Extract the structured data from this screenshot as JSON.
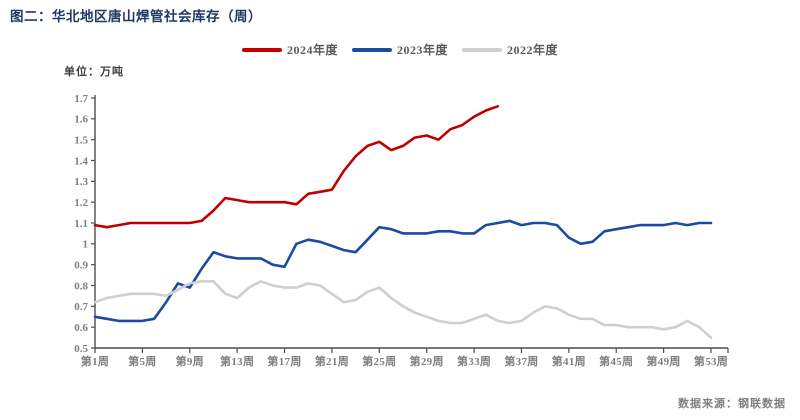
{
  "title": "图二：华北地区唐山焊管社会库存（周）",
  "unit_label": "单位：万吨",
  "source_note": "数据来源：钢联数据",
  "colors": {
    "title": "#1F3864",
    "legend_text": "#595959",
    "axis": "#4D4D4D",
    "tick_text": "#7F7F7F",
    "series_2024": "#C00000",
    "series_2023": "#1B4AA2",
    "series_2022": "#CFCFCF"
  },
  "chart_data": {
    "type": "line",
    "title": "华北地区唐山焊管社会库存（周）",
    "xlabel": "周",
    "ylabel": "万吨",
    "ylim": [
      0.5,
      1.7
    ],
    "y_tick_labels": [
      "1.7",
      "1.6",
      "1.5",
      "1.4",
      "1.3",
      "1.2",
      "1.1",
      "1",
      "0.9",
      "0.8",
      "0.7",
      "0.6",
      "0.5"
    ],
    "x_tick_weeks": [
      1,
      5,
      9,
      13,
      17,
      21,
      25,
      29,
      33,
      37,
      41,
      45,
      49,
      53
    ],
    "x_tick_labels": [
      "第1周",
      "第5周",
      "第9周",
      "第13周",
      "第17周",
      "第21周",
      "第25周",
      "第29周",
      "第33周",
      "第37周",
      "第41周",
      "第45周",
      "第49周",
      "第53周"
    ],
    "grid": false,
    "legend_position": "top",
    "series": [
      {
        "name": "2024年度",
        "color": "#C00000",
        "start_week": 1,
        "values": [
          1.09,
          1.08,
          1.09,
          1.1,
          1.1,
          1.1,
          1.1,
          1.1,
          1.1,
          1.11,
          1.16,
          1.22,
          1.21,
          1.2,
          1.2,
          1.2,
          1.2,
          1.19,
          1.24,
          1.25,
          1.26,
          1.35,
          1.42,
          1.47,
          1.49,
          1.45,
          1.47,
          1.51,
          1.52,
          1.5,
          1.55,
          1.57,
          1.61,
          1.64,
          1.66
        ]
      },
      {
        "name": "2023年度",
        "color": "#1B4AA2",
        "start_week": 1,
        "values": [
          0.65,
          0.64,
          0.63,
          0.63,
          0.63,
          0.64,
          0.72,
          0.81,
          0.79,
          0.88,
          0.96,
          0.94,
          0.93,
          0.93,
          0.93,
          0.9,
          0.89,
          1.0,
          1.02,
          1.01,
          0.99,
          0.97,
          0.96,
          1.02,
          1.08,
          1.07,
          1.05,
          1.05,
          1.05,
          1.06,
          1.06,
          1.05,
          1.05,
          1.09,
          1.1,
          1.11,
          1.09,
          1.1,
          1.1,
          1.09,
          1.03,
          1.0,
          1.01,
          1.06,
          1.07,
          1.08,
          1.09,
          1.09,
          1.09,
          1.1,
          1.09,
          1.1,
          1.1
        ]
      },
      {
        "name": "2022年度",
        "color": "#CFCFCF",
        "start_week": 1,
        "values": [
          0.72,
          0.74,
          0.75,
          0.76,
          0.76,
          0.76,
          0.75,
          0.78,
          0.81,
          0.82,
          0.82,
          0.76,
          0.74,
          0.79,
          0.82,
          0.8,
          0.79,
          0.79,
          0.81,
          0.8,
          0.76,
          0.72,
          0.73,
          0.77,
          0.79,
          0.74,
          0.7,
          0.67,
          0.65,
          0.63,
          0.62,
          0.62,
          0.64,
          0.66,
          0.63,
          0.62,
          0.63,
          0.67,
          0.7,
          0.69,
          0.66,
          0.64,
          0.64,
          0.61,
          0.61,
          0.6,
          0.6,
          0.6,
          0.59,
          0.6,
          0.63,
          0.6,
          0.55
        ]
      }
    ]
  }
}
